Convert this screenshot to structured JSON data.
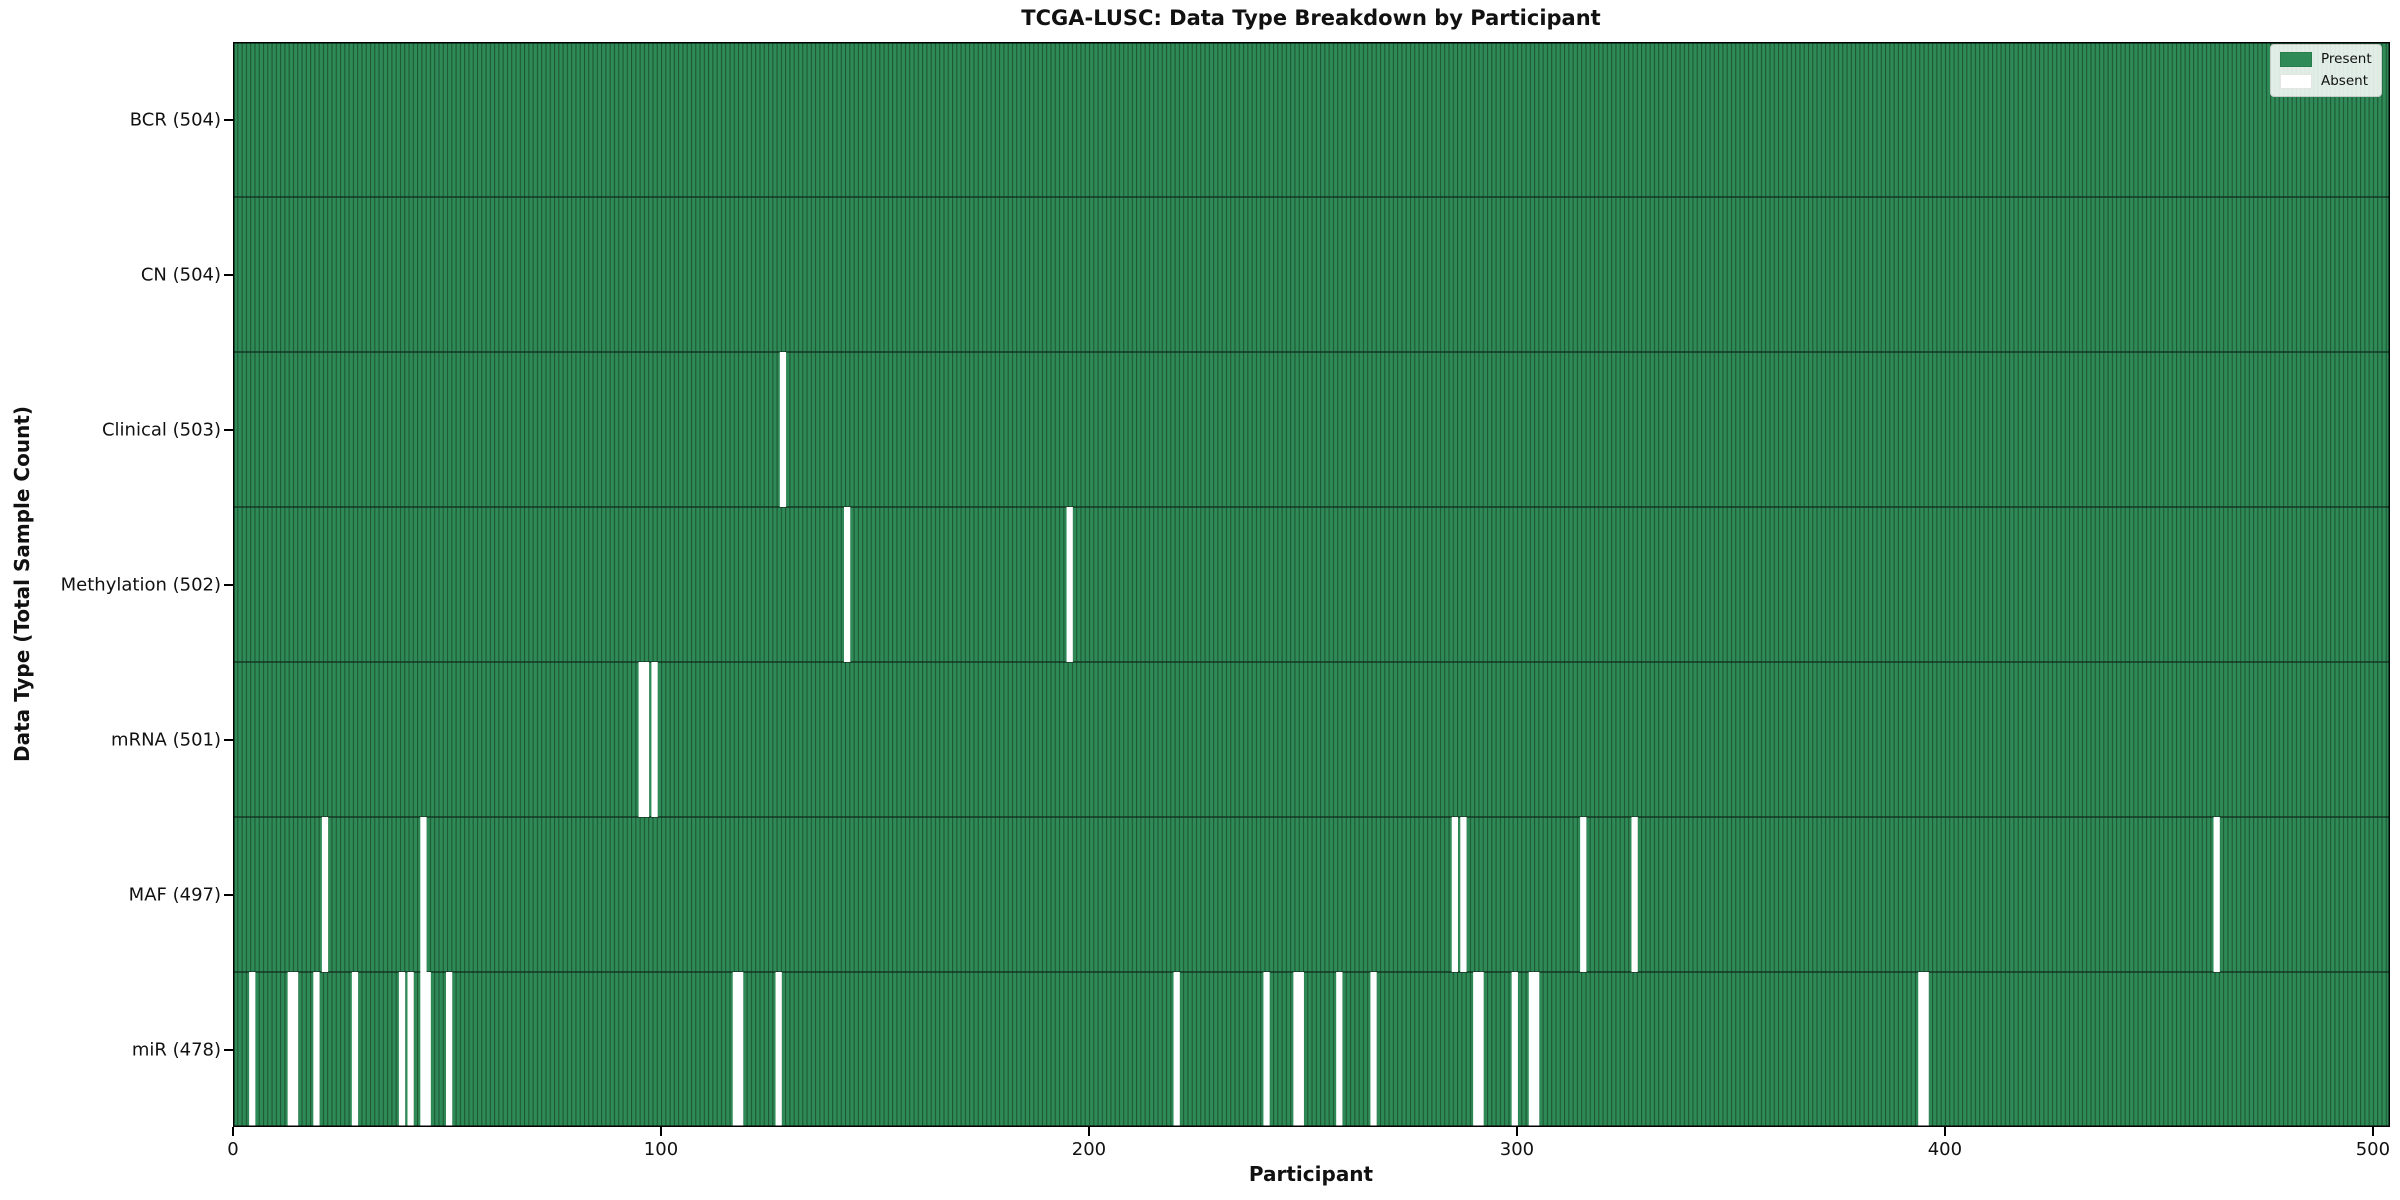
{
  "chart_data": {
    "type": "heatmap",
    "title": "TCGA-LUSC: Data Type Breakdown by Participant",
    "xlabel": "Participant",
    "ylabel": "Data Type (Total Sample Count)",
    "n_participants": 504,
    "x_ticks": [
      0,
      100,
      200,
      300,
      400,
      500
    ],
    "xlim": [
      0,
      504
    ],
    "grid": false,
    "legend_position": "upper right",
    "colors": {
      "present": "#2e8b57",
      "present_stripe_edge": "#1e5634",
      "absent": "#ffffff",
      "row_divider": "#10291a",
      "spine": "#000000"
    },
    "legend": [
      {
        "label": "Present",
        "color": "#2e8b57"
      },
      {
        "label": "Absent",
        "color": "#ffffff"
      }
    ],
    "rows": [
      {
        "label": "BCR (504)",
        "data_type": "BCR",
        "total": 504,
        "absent_participants": []
      },
      {
        "label": "CN (504)",
        "data_type": "CN",
        "total": 504,
        "absent_participants": []
      },
      {
        "label": "Clinical (503)",
        "data_type": "Clinical",
        "total": 503,
        "absent_participants": [
          128
        ]
      },
      {
        "label": "Methylation (502)",
        "data_type": "Methylation",
        "total": 502,
        "absent_participants": [
          143,
          195
        ]
      },
      {
        "label": "mRNA (501)",
        "data_type": "mRNA",
        "total": 501,
        "absent_participants": [
          95,
          96,
          98
        ]
      },
      {
        "label": "MAF (497)",
        "data_type": "MAF",
        "total": 497,
        "absent_participants": [
          21,
          44,
          285,
          287,
          315,
          327,
          463
        ]
      },
      {
        "label": "miR (478)",
        "data_type": "miR",
        "total": 478,
        "absent_participants": [
          4,
          13,
          14,
          19,
          28,
          39,
          41,
          44,
          45,
          50,
          117,
          118,
          127,
          220,
          241,
          248,
          249,
          258,
          266,
          290,
          291,
          299,
          303,
          304,
          394,
          395
        ]
      }
    ]
  }
}
